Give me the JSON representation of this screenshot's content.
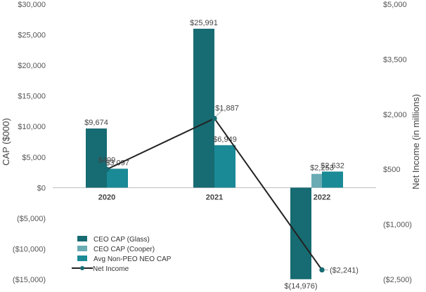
{
  "chart_data": {
    "type": "bar",
    "categories": [
      "2020",
      "2021",
      "2022"
    ],
    "series": [
      {
        "name": "CEO CAP (Glass)",
        "values": [
          9674,
          25991,
          -14976
        ],
        "labels": [
          "$9,674",
          "$25,991",
          "$(14,976)"
        ],
        "color": "#176b72",
        "axis": "left"
      },
      {
        "name": "CEO CAP (Cooper)",
        "values": [
          null,
          null,
          2253
        ],
        "labels": [
          "",
          "",
          "$2,253"
        ],
        "color": "#6aabb4",
        "axis": "left"
      },
      {
        "name": "Avg Non-PEO NEO CAP",
        "values": [
          3097,
          6949,
          2632
        ],
        "labels": [
          "$3,097",
          "$6,949",
          "$2,632"
        ],
        "color": "#1a8a96",
        "axis": "left"
      },
      {
        "name": "Net Income",
        "type": "line",
        "values": [
          499,
          1887,
          -2241
        ],
        "labels": [
          "$499",
          "$1,887",
          "($2,241)"
        ],
        "color": "#222222",
        "axis": "right"
      }
    ],
    "ylabel": "CAP ($000)",
    "y2label": "Net Income (in millions)",
    "ylim": [
      -15000,
      30000
    ],
    "y2lim": [
      -2500,
      5000
    ],
    "yticks": [
      {
        "v": 30000,
        "t": "$30,000"
      },
      {
        "v": 25000,
        "t": "$25,000"
      },
      {
        "v": 20000,
        "t": "$20,000"
      },
      {
        "v": 15000,
        "t": "$15,000"
      },
      {
        "v": 10000,
        "t": "$10,000"
      },
      {
        "v": 5000,
        "t": "$5,000"
      },
      {
        "v": 0,
        "t": "$0"
      },
      {
        "v": -5000,
        "t": "($5,000)"
      },
      {
        "v": -10000,
        "t": "($10,000)"
      },
      {
        "v": -15000,
        "t": "($15,000)"
      }
    ],
    "y2ticks": [
      {
        "v": 5000,
        "t": "$5,000"
      },
      {
        "v": 3500,
        "t": "$3,500"
      },
      {
        "v": 2000,
        "t": "$2,000"
      },
      {
        "v": 500,
        "t": "$500"
      },
      {
        "v": -1000,
        "t": "($1,000)"
      },
      {
        "v": -2500,
        "t": "($2,500)"
      }
    ],
    "grid": false,
    "legend_position": "bottom-left"
  }
}
